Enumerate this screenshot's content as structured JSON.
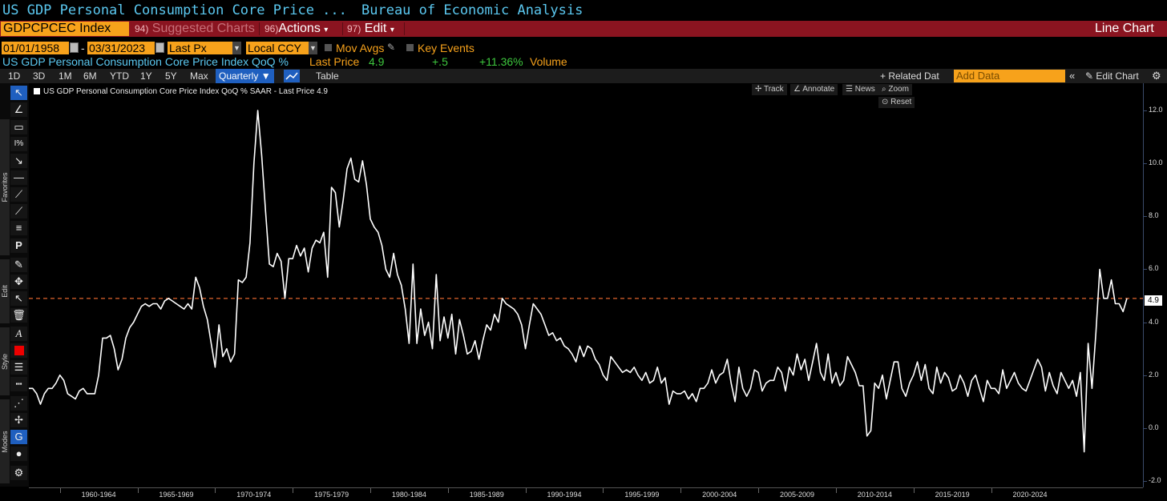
{
  "header": {
    "title": "US GDP Personal Consumption Core Price ...",
    "source": "Bureau of Economic Analysis"
  },
  "command_bar": {
    "ticker": "GDPCPCEC Index",
    "suggested_num": "94)",
    "suggested": "Suggested Charts",
    "actions_num": "96)",
    "actions": "Actions",
    "edit_num": "97)",
    "edit": "Edit",
    "view": "Line Chart",
    "caret": "▾"
  },
  "params": {
    "start_date": "01/01/1958",
    "dash": "-",
    "end_date": "03/31/2023",
    "field": "Last Px",
    "currency": "Local CCY",
    "mov_avgs": "Mov Avgs",
    "key_events": "Key Events"
  },
  "legend": {
    "series": "US GDP Personal Consumption Core Price Index QoQ %",
    "last_price_label": "Last Price",
    "last_price": "4.9",
    "change": "+.5",
    "pct_change": "+11.36%",
    "volume": "Volume"
  },
  "toolbar": {
    "ranges": [
      "1D",
      "3D",
      "1M",
      "6M",
      "YTD",
      "1Y",
      "5Y",
      "Max"
    ],
    "frequency": "Quarterly",
    "table": "Table",
    "related": "+ Related Dat",
    "add_data_placeholder": "Add Data",
    "edit_chart": "Edit Chart"
  },
  "side_panel": {
    "tabs": [
      "Favorites",
      "Edit",
      "Style",
      "Modes"
    ]
  },
  "chart_controls": {
    "track": "Track",
    "annotate": "Annotate",
    "news": "News",
    "zoom": "Zoom",
    "reset": "Reset"
  },
  "colors": {
    "background": "#000000",
    "series": "#ffffff",
    "reference_line": "#e0642c",
    "accent_orange": "#f7a21b",
    "command_red": "#8a1420",
    "title_blue": "#5bc8f0"
  },
  "chart_data": {
    "type": "line",
    "title": "US GDP Personal Consumption Core Price Index QoQ % SAAR - Last Price 4.9",
    "frequency": "quarterly",
    "x_start": "1958-Q1",
    "x_end": "2023-Q1",
    "ylim": [
      -2,
      13
    ],
    "yticks": [
      -2.0,
      0.0,
      2.0,
      4.0,
      6.0,
      8.0,
      10.0,
      12.0
    ],
    "y_axis_side": "right",
    "reference_line": {
      "value": 4.9,
      "style": "dashed"
    },
    "last_price_label": "4.9",
    "xtick_labels": [
      "1960-1964",
      "1965-1969",
      "1970-1974",
      "1975-1979",
      "1980-1984",
      "1985-1989",
      "1990-1994",
      "1995-1999",
      "2000-2004",
      "2005-2009",
      "2010-2014",
      "2015-2019",
      "2020-2024"
    ],
    "series": [
      {
        "name": "US GDP Personal Consumption Core Price Index QoQ % SAAR",
        "values": [
          1.5,
          1.5,
          1.3,
          0.9,
          1.3,
          1.5,
          1.5,
          1.7,
          2.0,
          1.8,
          1.3,
          1.2,
          1.1,
          1.4,
          1.5,
          1.3,
          1.3,
          1.3,
          2.0,
          3.4,
          3.4,
          3.5,
          3.0,
          2.2,
          2.6,
          3.4,
          3.8,
          4.0,
          4.3,
          4.6,
          4.7,
          4.6,
          4.7,
          4.7,
          4.5,
          4.8,
          4.9,
          4.8,
          4.7,
          4.6,
          4.5,
          4.7,
          4.5,
          5.7,
          5.3,
          4.6,
          4.1,
          3.2,
          2.3,
          3.9,
          2.7,
          3.0,
          2.5,
          2.8,
          5.6,
          5.5,
          5.7,
          7.0,
          10.0,
          12.0,
          10.3,
          8.2,
          6.2,
          6.1,
          6.6,
          6.3,
          4.9,
          6.4,
          6.4,
          6.9,
          6.5,
          6.8,
          5.9,
          6.8,
          7.1,
          7.0,
          7.4,
          5.7,
          9.1,
          8.9,
          7.6,
          8.6,
          9.8,
          10.2,
          9.4,
          9.3,
          10.1,
          9.2,
          7.9,
          7.6,
          7.4,
          6.9,
          6.0,
          5.7,
          6.6,
          5.8,
          5.4,
          4.5,
          3.2,
          6.2,
          3.2,
          4.5,
          3.5,
          4.0,
          3.0,
          5.8,
          3.3,
          4.2,
          3.4,
          4.3,
          2.8,
          4.1,
          3.5,
          2.8,
          2.9,
          3.3,
          2.6,
          3.3,
          3.9,
          3.7,
          4.3,
          4.0,
          4.9,
          4.7,
          4.6,
          4.5,
          4.3,
          3.9,
          3.0,
          3.9,
          4.7,
          4.5,
          4.3,
          3.9,
          3.5,
          3.6,
          3.3,
          3.4,
          3.1,
          3.0,
          2.8,
          2.5,
          3.1,
          2.7,
          3.1,
          3.0,
          2.6,
          2.4,
          2.0,
          1.8,
          2.7,
          2.5,
          2.3,
          2.1,
          2.2,
          2.1,
          2.3,
          2.0,
          1.8,
          2.1,
          1.7,
          1.8,
          2.3,
          1.7,
          1.9,
          0.9,
          1.4,
          1.3,
          1.3,
          1.4,
          1.1,
          1.3,
          1.0,
          1.5,
          1.5,
          1.7,
          2.2,
          1.7,
          2.0,
          2.1,
          2.6,
          1.7,
          1.0,
          2.3,
          1.5,
          1.2,
          1.5,
          2.2,
          2.1,
          1.4,
          1.7,
          1.8,
          1.8,
          2.3,
          2.1,
          1.4,
          2.3,
          2.0,
          2.8,
          2.2,
          2.6,
          1.8,
          2.5,
          3.2,
          2.1,
          1.8,
          2.8,
          1.7,
          2.1,
          1.6,
          1.8,
          2.7,
          2.4,
          2.1,
          1.6,
          1.6,
          -0.3,
          -0.1,
          1.7,
          1.5,
          2.0,
          1.1,
          1.8,
          2.5,
          2.5,
          1.5,
          1.2,
          1.7,
          2.0,
          2.5,
          1.8,
          2.4,
          1.5,
          1.3,
          2.3,
          1.7,
          2.1,
          1.9,
          1.4,
          1.5,
          2.0,
          1.7,
          1.2,
          1.8,
          2.0,
          1.5,
          1.0,
          1.8,
          1.5,
          1.5,
          1.3,
          2.2,
          1.5,
          1.8,
          2.1,
          1.7,
          1.5,
          1.4,
          1.8,
          2.2,
          2.6,
          2.3,
          1.4,
          2.1,
          1.6,
          1.3,
          2.1,
          1.8,
          1.5,
          1.8,
          1.2,
          2.1,
          -0.9,
          3.2,
          1.5,
          3.6,
          6.0,
          4.9,
          4.9,
          5.6,
          4.7,
          4.7,
          4.4,
          4.9
        ]
      }
    ]
  }
}
